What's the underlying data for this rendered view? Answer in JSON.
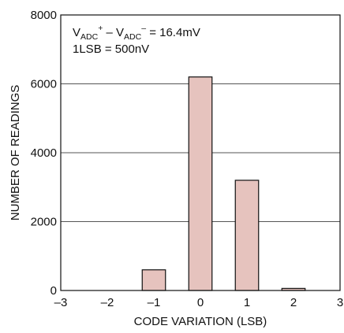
{
  "chart_data": {
    "type": "bar",
    "title": "",
    "xlabel": "CODE VARIATION (LSB)",
    "ylabel": "NUMBER OF READINGS",
    "xlim": [
      -3,
      3
    ],
    "ylim": [
      0,
      8000
    ],
    "x_ticks": [
      "–3",
      "–2",
      "–1",
      "0",
      "1",
      "2",
      "3"
    ],
    "y_ticks": [
      "0",
      "2000",
      "4000",
      "6000",
      "8000"
    ],
    "grid": "horizontal",
    "bars": [
      {
        "x": -1,
        "value": 600
      },
      {
        "x": 0,
        "value": 6200
      },
      {
        "x": 1,
        "value": 3200
      },
      {
        "x": 2,
        "value": 60
      }
    ],
    "bar_color": "#e6c3be",
    "annotation": {
      "line1": {
        "v1": "V",
        "sub1": "ADC",
        "sup1": "+",
        "mid": " – V",
        "sub2": "ADC",
        "sup2": "–",
        "tail": " = 16.4mV"
      },
      "line2": "1LSB = 500nV"
    }
  }
}
